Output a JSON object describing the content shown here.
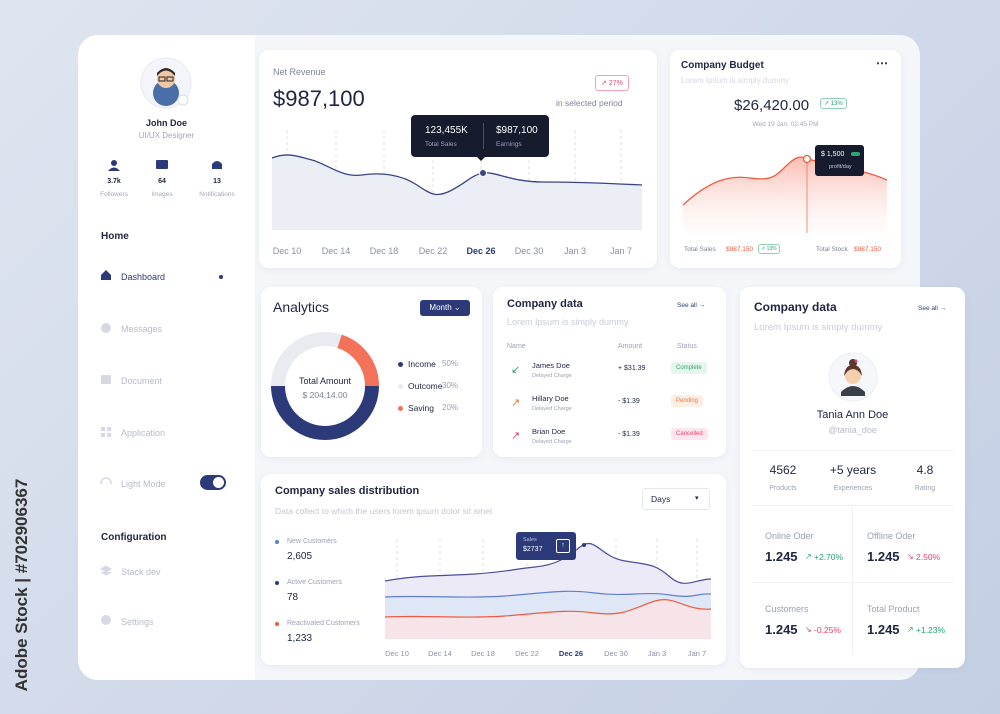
{
  "watermark": "Adobe Stock | #702906367",
  "sidebar": {
    "user": {
      "name": "John Doe",
      "role": "UI/UX Designer"
    },
    "stats": [
      {
        "value": "3.7k",
        "label": "Followers"
      },
      {
        "value": "64",
        "label": "Images"
      },
      {
        "value": "13",
        "label": "Notifications"
      }
    ],
    "home": {
      "title": "Home",
      "items": [
        "Dashboard",
        "Messages",
        "Document",
        "Application",
        "Light Mode"
      ]
    },
    "configuration": {
      "title": "Configuration",
      "items": [
        "Stack dev",
        "Settings"
      ]
    }
  },
  "net_revenue": {
    "title": "Net Revenue",
    "value": "$987,100",
    "change": "27%",
    "period": "in selected period",
    "tooltip": {
      "sales_value": "123,455K",
      "sales_label": "Total Sales",
      "earnings_value": "$987,100",
      "earnings_label": "Earnings"
    },
    "x_labels": [
      "Dec 10",
      "Dec 14",
      "Dec 18",
      "Dec 22",
      "Dec 26",
      "Dec 30",
      "Jan 3",
      "Jan 7"
    ]
  },
  "budget": {
    "title": "Company Budget",
    "subtitle": "Lorem Ipsum is simply dummy",
    "value": "$26,420.00",
    "change": "13%",
    "date": "Wed 19 Jan, 02:45 PM",
    "tooltip": {
      "value": "$ 1,500",
      "label": "profit/day"
    },
    "total_sales": {
      "label": "Total Sales",
      "value": "$987,150",
      "change": "13%"
    },
    "total_stock": {
      "label": "Total Stock",
      "value": "$987,150"
    }
  },
  "analytics": {
    "title": "Analytics",
    "period": "Month",
    "center_label": "Total Amount",
    "center_value": "$ 204,14.00",
    "chart_data": {
      "type": "donut",
      "categories": [
        "Income",
        "Outcome",
        "Saving"
      ],
      "values": [
        50,
        30,
        20
      ],
      "value_labels": [
        "50%",
        "30%",
        "20%"
      ],
      "colors": [
        "#2c3a7a",
        "#e9ebf1",
        "#f2735a"
      ]
    }
  },
  "company_data": {
    "title": "Company data",
    "subtitle": "Lorem Ipsum is simply dummy",
    "see_all": "See all",
    "table": {
      "headers": [
        "Name",
        "Amount",
        "Status"
      ],
      "rows": [
        {
          "name": "James Doe",
          "note": "Delayed Charge",
          "amount": "+ $31.39",
          "status": "Complete"
        },
        {
          "name": "Hillary Doe",
          "note": "Delayed Charge",
          "amount": "- $1.39",
          "status": "Pending"
        },
        {
          "name": "Brian Doe",
          "note": "Delayed Charge",
          "amount": "- $1.39",
          "status": "Cancelled"
        }
      ]
    }
  },
  "sales": {
    "title": "Company sales distribution",
    "subtitle": "Data collect to which the users lorem ipsum dolor sit amet",
    "period": "Days",
    "legend": [
      {
        "label": "New Customers",
        "value": "2,605"
      },
      {
        "label": "Active Customers",
        "value": "78"
      },
      {
        "label": "Reactivated Customers",
        "value": "1,233"
      }
    ],
    "tooltip": {
      "label": "Sales",
      "value": "$2737"
    },
    "x_labels": [
      "Dec 10",
      "Dec 14",
      "Dec 18",
      "Dec 22",
      "Dec 26",
      "Dec 30",
      "Jan 3",
      "Jan 7"
    ]
  },
  "profile": {
    "title": "Company data",
    "see_all": "See all",
    "subtitle": "Lorem Ipsum is simply dummy",
    "name": "Tania Ann Doe",
    "handle": "@tania_doe",
    "stats": [
      {
        "value": "4562",
        "label": "Products"
      },
      {
        "value": "+5 years",
        "label": "Experiences"
      },
      {
        "value": "4.8",
        "label": "Rating"
      }
    ],
    "metrics": [
      {
        "label": "Online Oder",
        "value": "1.245",
        "change": "+2.70%"
      },
      {
        "label": "Offline Oder",
        "value": "1.245",
        "change": "2.50%"
      },
      {
        "label": "Customers",
        "value": "1.245",
        "change": "-0.25%"
      },
      {
        "label": "Total Product",
        "value": "1.245",
        "change": "+1.23%"
      }
    ]
  }
}
